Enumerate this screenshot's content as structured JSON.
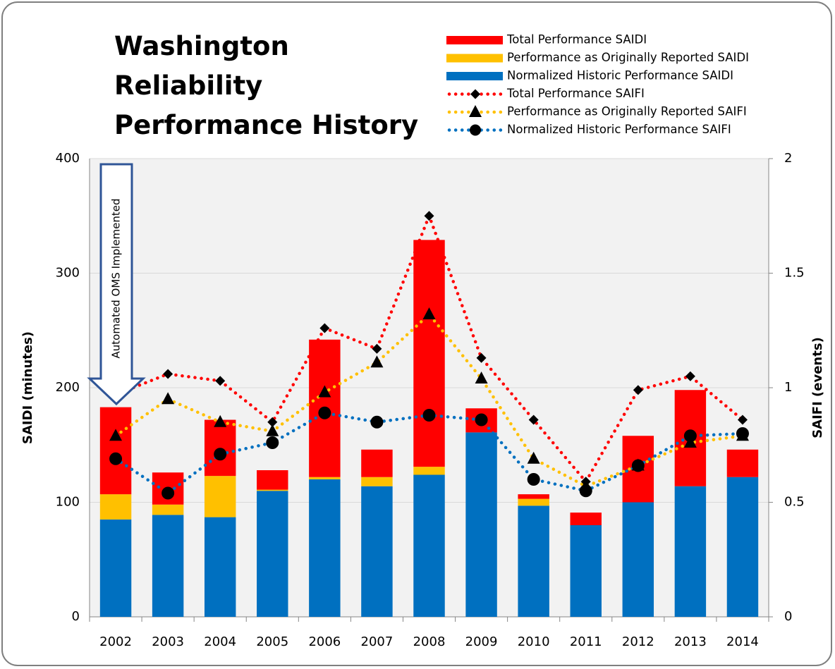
{
  "chart_data": {
    "type": "bar",
    "title": "Washington Reliability Performance History",
    "y_label": "SAIDI (minutes)",
    "y2_label": "SAIFI (events)",
    "annotation": "Automated OMS Implemented",
    "categories": [
      "2002",
      "2003",
      "2004",
      "2005",
      "2006",
      "2007",
      "2008",
      "2009",
      "2010",
      "2011",
      "2012",
      "2013",
      "2014"
    ],
    "ylim": [
      0,
      400
    ],
    "yticks": [
      0,
      100,
      200,
      300,
      400
    ],
    "y2lim": [
      0,
      2
    ],
    "y2ticks": [
      0,
      0.5,
      1,
      1.5,
      2
    ],
    "grid": true,
    "legend": "top-right",
    "stacked": true,
    "series": [
      {
        "name": "Normalized Historic Performance SAIDI",
        "type": "bar",
        "color": "#0070c0",
        "values": [
          85,
          89,
          87,
          110,
          120,
          114,
          124,
          161,
          97,
          80,
          100,
          114,
          122
        ]
      },
      {
        "name": "Performance as Originally Reported SAIDI",
        "type": "bar",
        "color": "#ffc000",
        "values": [
          22,
          9,
          36,
          1,
          2,
          8,
          7,
          0,
          6,
          0,
          0,
          0,
          0
        ]
      },
      {
        "name": "Total Performance SAIDI",
        "type": "bar",
        "color": "#ff0000",
        "values": [
          76,
          28,
          49,
          17,
          120,
          24,
          198,
          21,
          4,
          11,
          58,
          84,
          24
        ]
      },
      {
        "name": "Total Performance SAIFI",
        "type": "line",
        "axis": "y2",
        "marker": "diamond",
        "color": "#ff0000",
        "values": [
          0.97,
          1.06,
          1.03,
          0.85,
          1.26,
          1.17,
          1.75,
          1.13,
          0.86,
          0.59,
          0.99,
          1.05,
          0.86
        ]
      },
      {
        "name": "Performance as Originally Reported SAIFI",
        "type": "line",
        "axis": "y2",
        "marker": "triangle",
        "color": "#ffc000",
        "values": [
          0.79,
          0.95,
          0.85,
          0.81,
          0.98,
          1.11,
          1.32,
          1.04,
          0.69,
          0.57,
          0.66,
          0.76,
          0.79
        ]
      },
      {
        "name": "Normalized Historic Performance SAIFI",
        "type": "line",
        "axis": "y2",
        "marker": "circle",
        "color": "#0070c0",
        "values": [
          0.69,
          0.54,
          0.71,
          0.76,
          0.89,
          0.85,
          0.88,
          0.86,
          0.6,
          0.55,
          0.66,
          0.79,
          0.8
        ]
      }
    ]
  }
}
